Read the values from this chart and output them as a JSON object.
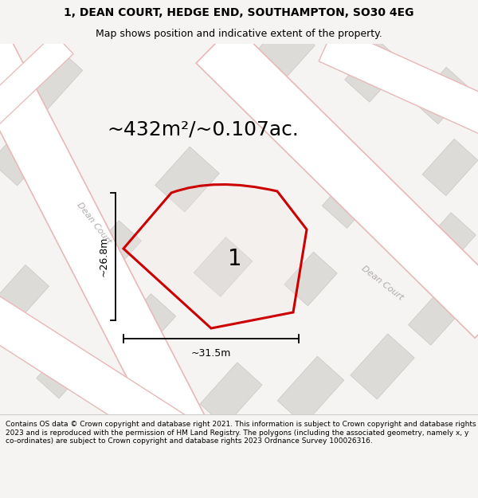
{
  "title_line1": "1, DEAN COURT, HEDGE END, SOUTHAMPTON, SO30 4EG",
  "title_line2": "Map shows position and indicative extent of the property.",
  "area_label": "~432m²/~0.107ac.",
  "width_label": "~31.5m",
  "height_label": "~26.8m",
  "plot_label": "1",
  "road_label_left": "Dean Court",
  "road_label_right": "Dean Court",
  "footer_text": "Contains OS data © Crown copyright and database right 2021. This information is subject to Crown copyright and database rights 2023 and is reproduced with the permission of HM Land Registry. The polygons (including the associated geometry, namely x, y co-ordinates) are subject to Crown copyright and database rights 2023 Ordnance Survey 100026316.",
  "bg_color": "#f5f4f2",
  "map_bg": "#f0efed",
  "building_color": "#dddbd8",
  "building_edge": "#c9c7c4",
  "road_fill": "#ffffff",
  "road_edge": "#e8b8b8",
  "plot_fill": "none",
  "plot_edge": "#cc0000",
  "dim_color": "#111111",
  "road_label_color": "#b0aaaa",
  "footer_bg": "#ffffff",
  "title_fontsize": 10,
  "subtitle_fontsize": 9,
  "area_fontsize": 18,
  "plot_num_fontsize": 20,
  "dim_fontsize": 9,
  "road_fontsize": 8,
  "footer_fontsize": 6.5
}
